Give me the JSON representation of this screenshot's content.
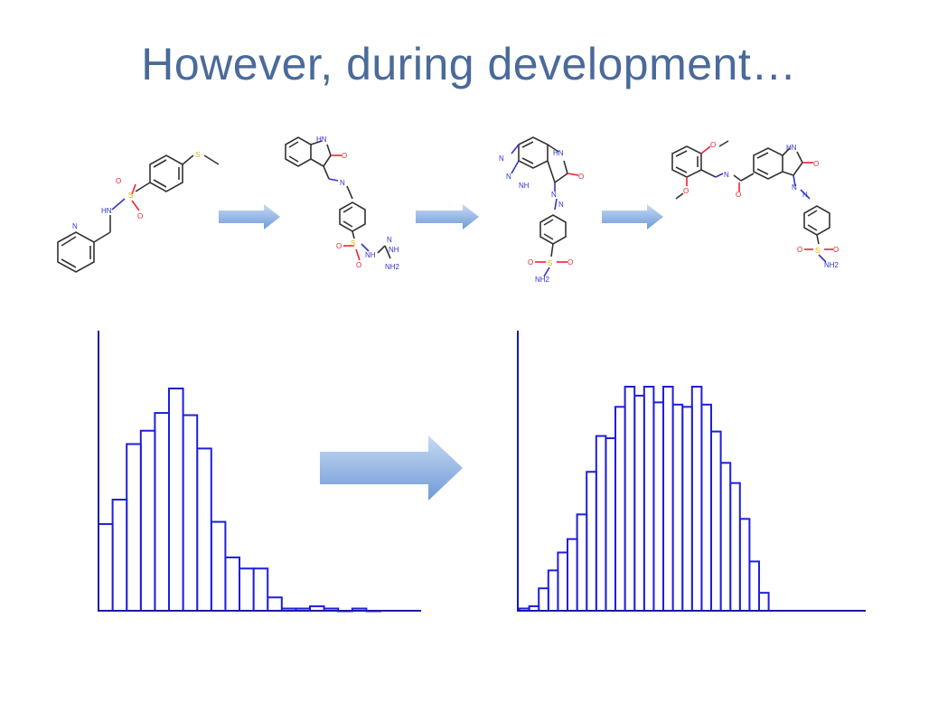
{
  "slide": {
    "title": "However, during development…"
  },
  "molecules": [
    {
      "name": "molecule-1",
      "atoms": [
        "N",
        "HN",
        "S",
        "O",
        "O",
        "S"
      ]
    },
    {
      "name": "molecule-2",
      "atoms": [
        "HN",
        "O",
        "N",
        "S",
        "O",
        "O",
        "NH",
        "N",
        "NH",
        "NH2"
      ]
    },
    {
      "name": "molecule-3",
      "atoms": [
        "HN",
        "N",
        "N",
        "NH",
        "O",
        "N",
        "N",
        "S",
        "O",
        "O",
        "NH2"
      ]
    },
    {
      "name": "molecule-4",
      "atoms": [
        "O",
        "O",
        "N",
        "O",
        "HN",
        "O",
        "N",
        "N",
        "S",
        "O",
        "O",
        "NH2"
      ]
    }
  ],
  "colors": {
    "title": "#4a6a9a",
    "bar_stroke": "#1f1fdd",
    "axis": "#1a1aa8",
    "arrow_light": "#b3cdf0",
    "arrow_dark": "#6e9ad8"
  },
  "chart_data": [
    {
      "type": "bar",
      "name": "histogram-before",
      "title": "",
      "xlabel": "",
      "ylabel": "",
      "values": [
        39,
        50,
        75,
        81,
        89,
        100,
        88,
        73,
        40,
        24,
        19,
        19,
        6,
        1,
        1,
        2,
        1,
        0,
        1,
        0
      ],
      "ylim": [
        0,
        100
      ]
    },
    {
      "type": "bar",
      "name": "histogram-after",
      "title": "",
      "xlabel": "",
      "ylabel": "",
      "values": [
        1,
        2,
        10,
        18,
        26,
        32,
        43,
        62,
        78,
        77,
        91,
        100,
        96,
        100,
        93,
        100,
        92,
        91,
        100,
        92,
        80,
        66,
        57,
        41,
        22,
        8
      ],
      "ylim": [
        0,
        100
      ]
    }
  ]
}
